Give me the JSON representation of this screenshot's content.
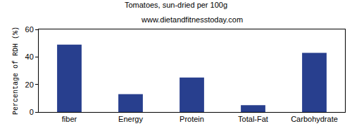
{
  "chart_data": {
    "type": "bar",
    "title": "Tomatoes, sun-dried per 100g",
    "subtitle": "www.dietandfitnesstoday.com",
    "y_label": "Percentage of RDH (%)",
    "categories": [
      "fiber",
      "Energy",
      "Protein",
      "Total-Fat",
      "Carbohydrate"
    ],
    "values": [
      49,
      13,
      25,
      5,
      43
    ],
    "color": "#283f8e",
    "ylim": [
      0,
      60
    ],
    "yticks": [
      0,
      20,
      40,
      60
    ],
    "grid": false
  }
}
